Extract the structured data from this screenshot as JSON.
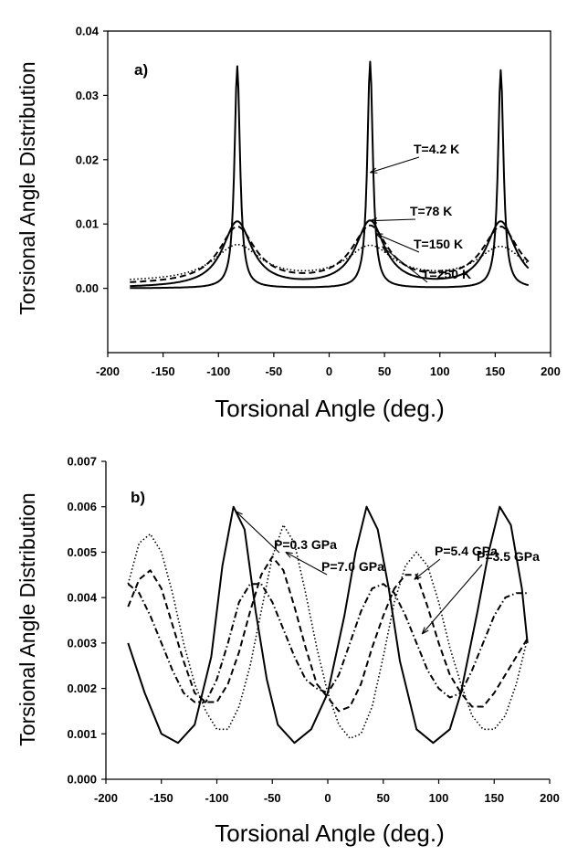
{
  "chart_data": [
    {
      "type": "line",
      "panel_label": "a)",
      "xlabel": "Torsional Angle (deg.)",
      "ylabel": "Torsional Angle Distribution",
      "xlim": [
        -200,
        200
      ],
      "ylim": [
        -0.01,
        0.04
      ],
      "xticks": [
        -200,
        -150,
        -100,
        -50,
        0,
        50,
        100,
        150,
        200
      ],
      "yticks": [
        0.0,
        0.01,
        0.02,
        0.03,
        0.04
      ],
      "ytick_labels": [
        "0.00",
        "0.01",
        "0.02",
        "0.03",
        "0.04"
      ],
      "grid": false,
      "legend": "none",
      "series": [
        {
          "name": "T=4.2 K",
          "style": "solid",
          "peaks": [
            -83,
            37,
            155
          ],
          "amplitudes": [
            0.0345,
            0.0352,
            0.0339
          ],
          "widths": [
            3,
            3,
            3
          ],
          "baseline": 0.0
        },
        {
          "name": "T=78 K",
          "style": "solid",
          "peaks": [
            -83,
            37,
            155
          ],
          "amplitudes": [
            0.0102,
            0.0102,
            0.0102
          ],
          "widths": [
            16,
            16,
            16
          ],
          "baseline": 0.0
        },
        {
          "name": "T=150 K",
          "style": "dashed",
          "peaks": [
            -83,
            37,
            155
          ],
          "amplitudes": [
            0.0093,
            0.0093,
            0.0093
          ],
          "widths": [
            20,
            20,
            20
          ],
          "baseline": 0.0005
        },
        {
          "name": "T=250 K",
          "style": "dotted",
          "peaks": [
            -83,
            37,
            155
          ],
          "amplitudes": [
            0.0065,
            0.0062,
            0.0062
          ],
          "widths": [
            26,
            26,
            26
          ],
          "baseline": 0.0009
        }
      ],
      "annotations": [
        {
          "text": "T=4.2 K",
          "target": [
            37,
            0.018
          ]
        },
        {
          "text": "T=78 K",
          "target": [
            37,
            0.0105
          ]
        },
        {
          "text": "T=150 K",
          "target": [
            42,
            0.0085
          ]
        },
        {
          "text": "T=250 K",
          "target": [
            48,
            0.0065
          ]
        }
      ]
    },
    {
      "type": "line",
      "panel_label": "b)",
      "xlabel": "Torsional Angle (deg.)",
      "ylabel": "Torsional Angle Distribution",
      "xlim": [
        -200,
        200
      ],
      "ylim": [
        0.0,
        0.007
      ],
      "xticks": [
        -200,
        -150,
        -100,
        -50,
        0,
        50,
        100,
        150,
        200
      ],
      "yticks": [
        0.0,
        0.001,
        0.002,
        0.003,
        0.004,
        0.005,
        0.006,
        0.007
      ],
      "ytick_labels": [
        "0.000",
        "0.001",
        "0.002",
        "0.003",
        "0.004",
        "0.005",
        "0.006",
        "0.007"
      ],
      "grid": false,
      "legend": "none",
      "series": [
        {
          "name": "P=0.3 GPa",
          "style": "solid",
          "x": [
            -180,
            -165,
            -150,
            -135,
            -120,
            -105,
            -95,
            -85,
            -75,
            -65,
            -55,
            -45,
            -30,
            -15,
            0,
            15,
            25,
            35,
            45,
            55,
            65,
            80,
            95,
            110,
            120,
            135,
            145,
            155,
            165,
            175,
            180
          ],
          "y": [
            0.003,
            0.0019,
            0.001,
            0.0008,
            0.0012,
            0.0027,
            0.0047,
            0.006,
            0.0055,
            0.0037,
            0.0022,
            0.0012,
            0.0008,
            0.0011,
            0.0019,
            0.0036,
            0.005,
            0.006,
            0.0055,
            0.0042,
            0.0026,
            0.0011,
            0.0008,
            0.0011,
            0.0019,
            0.0037,
            0.005,
            0.006,
            0.0056,
            0.0042,
            0.003
          ]
        },
        {
          "name": "P=3.5 GPa",
          "style": "dashdot",
          "x": [
            -180,
            -170,
            -160,
            -150,
            -140,
            -130,
            -120,
            -110,
            -100,
            -90,
            -80,
            -70,
            -60,
            -50,
            -40,
            -30,
            -20,
            -10,
            0,
            10,
            20,
            30,
            40,
            50,
            60,
            70,
            80,
            90,
            100,
            110,
            120,
            130,
            140,
            150,
            160,
            170,
            180
          ],
          "y": [
            0.0043,
            0.0041,
            0.0036,
            0.003,
            0.0024,
            0.0019,
            0.0017,
            0.0017,
            0.0022,
            0.003,
            0.0039,
            0.0043,
            0.0043,
            0.0039,
            0.0033,
            0.0027,
            0.0022,
            0.002,
            0.0019,
            0.0023,
            0.003,
            0.0037,
            0.0042,
            0.0043,
            0.0041,
            0.0036,
            0.003,
            0.0024,
            0.002,
            0.0018,
            0.0019,
            0.0024,
            0.003,
            0.0036,
            0.004,
            0.0041,
            0.0041
          ]
        },
        {
          "name": "P=5.4 GPa",
          "style": "dashed",
          "x": [
            -180,
            -170,
            -160,
            -150,
            -140,
            -130,
            -120,
            -110,
            -100,
            -90,
            -80,
            -70,
            -60,
            -50,
            -40,
            -30,
            -20,
            -10,
            0,
            10,
            20,
            30,
            40,
            50,
            60,
            70,
            80,
            90,
            100,
            110,
            120,
            130,
            140,
            150,
            160,
            170,
            180
          ],
          "y": [
            0.0038,
            0.0044,
            0.0046,
            0.0042,
            0.0034,
            0.0026,
            0.0019,
            0.0017,
            0.0017,
            0.0021,
            0.0028,
            0.0037,
            0.0045,
            0.0049,
            0.0046,
            0.0038,
            0.0029,
            0.0021,
            0.0018,
            0.0015,
            0.0016,
            0.0021,
            0.0029,
            0.0036,
            0.0042,
            0.0045,
            0.0045,
            0.0038,
            0.003,
            0.0023,
            0.0019,
            0.0016,
            0.0016,
            0.0019,
            0.0023,
            0.0027,
            0.0031
          ]
        },
        {
          "name": "P=7.0 GPa",
          "style": "dotted",
          "x": [
            -180,
            -170,
            -160,
            -150,
            -140,
            -130,
            -120,
            -110,
            -100,
            -90,
            -80,
            -70,
            -60,
            -50,
            -40,
            -30,
            -20,
            -10,
            0,
            10,
            20,
            30,
            40,
            50,
            60,
            70,
            80,
            90,
            100,
            110,
            120,
            130,
            140,
            150,
            160,
            170,
            180
          ],
          "y": [
            0.0043,
            0.0052,
            0.0054,
            0.005,
            0.0041,
            0.003,
            0.0021,
            0.0015,
            0.0011,
            0.0011,
            0.0016,
            0.0025,
            0.0037,
            0.0049,
            0.0056,
            0.0052,
            0.0041,
            0.0029,
            0.0019,
            0.0012,
            0.0009,
            0.001,
            0.0016,
            0.0027,
            0.0039,
            0.0047,
            0.005,
            0.0047,
            0.0039,
            0.0029,
            0.0021,
            0.0014,
            0.0011,
            0.0011,
            0.0014,
            0.0021,
            0.0031
          ]
        }
      ],
      "annotations": [
        {
          "text": "P=0.3 GPa",
          "target": [
            -83,
            0.0059
          ]
        },
        {
          "text": "P=7.0 GPa",
          "target": [
            -38,
            0.005
          ]
        },
        {
          "text": "P=5.4 GPa",
          "target": [
            78,
            0.0044
          ]
        },
        {
          "text": "P=3.5 GPa",
          "target": [
            85,
            0.0032
          ]
        }
      ]
    }
  ]
}
